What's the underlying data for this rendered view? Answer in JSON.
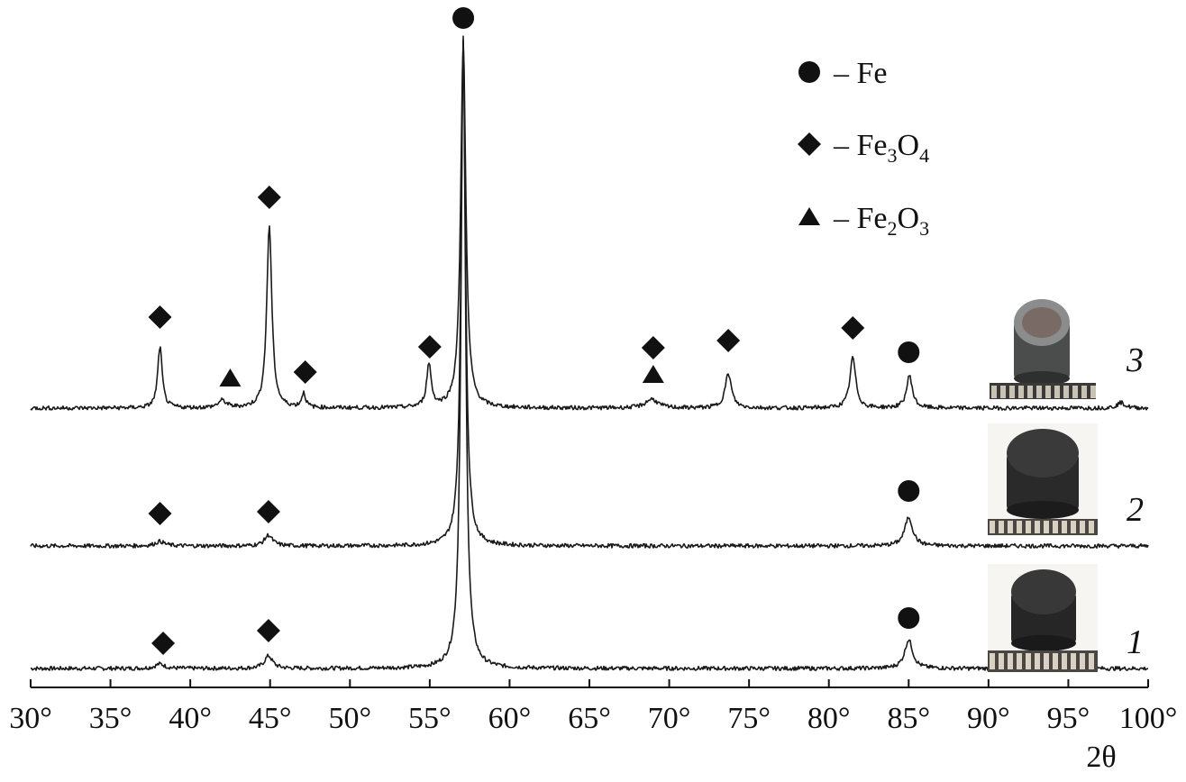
{
  "chart_data": {
    "type": "line",
    "title": "",
    "xlabel": "2θ",
    "ylabel": "",
    "xlim": [
      30,
      100
    ],
    "x_ticks": [
      "30°",
      "35°",
      "40°",
      "45°",
      "50°",
      "55°",
      "60°",
      "65°",
      "70°",
      "75°",
      "80°",
      "85°",
      "90°",
      "95°",
      "100°"
    ],
    "grid": false,
    "legend_position": "top-right",
    "legend": [
      {
        "marker": "circle",
        "text": "– Fe",
        "base": "– Fe",
        "sub1": "",
        "mid": "",
        "sub2": ""
      },
      {
        "marker": "diamond",
        "text": "– Fe3O4",
        "base": "– Fe",
        "sub1": "3",
        "mid": "O",
        "sub2": "4"
      },
      {
        "marker": "triangle",
        "text": "– Fe2O3",
        "base": "– Fe",
        "sub1": "2",
        "mid": "O",
        "sub2": "3"
      }
    ],
    "series": [
      {
        "name": "1",
        "baseline": 742,
        "peaks": [
          {
            "x": 38.1,
            "h": 5,
            "w": 0.35
          },
          {
            "x": 44.9,
            "h": 14,
            "w": 0.3
          },
          {
            "x": 57.1,
            "h": 700,
            "w": 0.17
          },
          {
            "x": 85.0,
            "h": 32,
            "w": 0.3
          }
        ],
        "markers": [
          {
            "type": "diamond",
            "x": 38.3,
            "y": 714
          },
          {
            "type": "diamond",
            "x": 44.9,
            "y": 700
          },
          {
            "type": "circle",
            "x": 85.0,
            "y": 686
          }
        ]
      },
      {
        "name": "2",
        "baseline": 606,
        "peaks": [
          {
            "x": 38.1,
            "h": 5,
            "w": 0.35
          },
          {
            "x": 44.9,
            "h": 12,
            "w": 0.3
          },
          {
            "x": 57.1,
            "h": 560,
            "w": 0.17
          },
          {
            "x": 85.0,
            "h": 32,
            "w": 0.3
          }
        ],
        "markers": [
          {
            "type": "diamond",
            "x": 38.1,
            "y": 570
          },
          {
            "type": "diamond",
            "x": 44.9,
            "y": 568
          },
          {
            "type": "circle",
            "x": 85.0,
            "y": 545
          }
        ]
      },
      {
        "name": "3",
        "baseline": 453,
        "peaks": [
          {
            "x": 38.1,
            "h": 68,
            "w": 0.17
          },
          {
            "x": 42.0,
            "h": 8,
            "w": 0.3
          },
          {
            "x": 44.95,
            "h": 203,
            "w": 0.19
          },
          {
            "x": 47.1,
            "h": 16,
            "w": 0.15
          },
          {
            "x": 54.95,
            "h": 48,
            "w": 0.17
          },
          {
            "x": 57.1,
            "h": 408,
            "w": 0.19
          },
          {
            "x": 68.9,
            "h": 10,
            "w": 0.45
          },
          {
            "x": 73.7,
            "h": 38,
            "w": 0.24
          },
          {
            "x": 81.5,
            "h": 56,
            "w": 0.22
          },
          {
            "x": 85.05,
            "h": 36,
            "w": 0.22
          },
          {
            "x": 98.3,
            "h": 6,
            "w": 0.3
          }
        ],
        "markers": [
          {
            "type": "diamond",
            "x": 38.1,
            "y": 352
          },
          {
            "type": "diamond",
            "x": 44.95,
            "y": 219
          },
          {
            "type": "triangle",
            "x": 42.5,
            "y": 420
          },
          {
            "type": "diamond",
            "x": 47.2,
            "y": 413
          },
          {
            "type": "diamond",
            "x": 55.0,
            "y": 385
          },
          {
            "type": "circle",
            "x": 57.1,
            "y": 20
          },
          {
            "type": "diamond",
            "x": 69.0,
            "y": 386
          },
          {
            "type": "triangle",
            "x": 69.0,
            "y": 416
          },
          {
            "type": "diamond",
            "x": 73.7,
            "y": 378
          },
          {
            "type": "diamond",
            "x": 81.5,
            "y": 364
          },
          {
            "type": "circle",
            "x": 85.0,
            "y": 391
          }
        ]
      }
    ]
  }
}
